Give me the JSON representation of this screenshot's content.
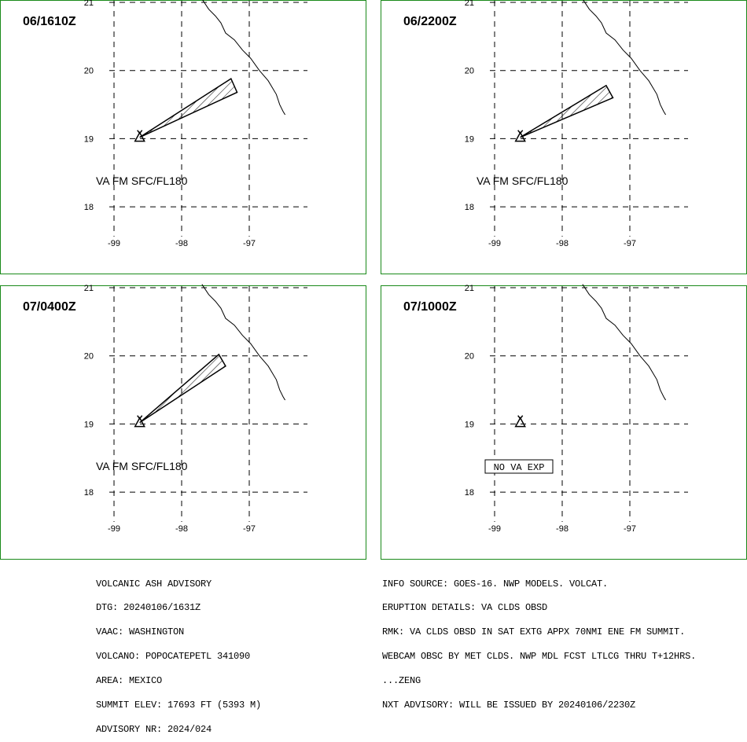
{
  "panels": [
    {
      "time": "06/1610Z",
      "va_label": "VA FM SFC/FL180",
      "plume": {
        "tip1": [
          -97.27,
          19.88
        ],
        "tip2": [
          -97.18,
          19.68
        ]
      },
      "no_va_label": null
    },
    {
      "time": "06/2200Z",
      "va_label": "VA FM SFC/FL180",
      "plume": {
        "tip1": [
          -97.35,
          19.78
        ],
        "tip2": [
          -97.25,
          19.6
        ]
      },
      "no_va_label": null
    },
    {
      "time": "07/0400Z",
      "va_label": "VA FM SFC/FL180",
      "plume": {
        "tip1": [
          -97.45,
          20.02
        ],
        "tip2": [
          -97.35,
          19.85
        ]
      },
      "no_va_label": null
    },
    {
      "time": "07/1000Z",
      "va_label": null,
      "plume": null,
      "no_va_label": "NO VA EXP"
    }
  ],
  "axes": {
    "lon_ticks": [
      "-99",
      "-98",
      "-97"
    ],
    "lat_ticks": [
      "21",
      "20",
      "19",
      "18"
    ]
  },
  "volcano": {
    "lon": -98.62,
    "lat": 19.02
  },
  "colors": {
    "border": "#1a8a1a",
    "line": "#000000"
  },
  "advisory_left": [
    "VOLCANIC ASH ADVISORY",
    "DTG: 20240106/1631Z",
    "VAAC: WASHINGTON",
    "VOLCANO: POPOCATEPETL 341090",
    "AREA: MEXICO",
    "SUMMIT ELEV: 17693 FT (5393 M)",
    "ADVISORY NR: 2024/024"
  ],
  "advisory_right": [
    "INFO SOURCE: GOES-16. NWP MODELS. VOLCAT.",
    "ERUPTION DETAILS: VA CLDS OBSD",
    "RMK: VA CLDS OBSD IN SAT EXTG APPX 70NMI ENE FM SUMMIT.",
    "WEBCAM OBSC BY MET CLDS. NWP MDL FCST LTLCG THRU T+12HRS.",
    "...ZENG",
    "NXT ADVISORY: WILL BE ISSUED BY 20240106/2230Z"
  ]
}
